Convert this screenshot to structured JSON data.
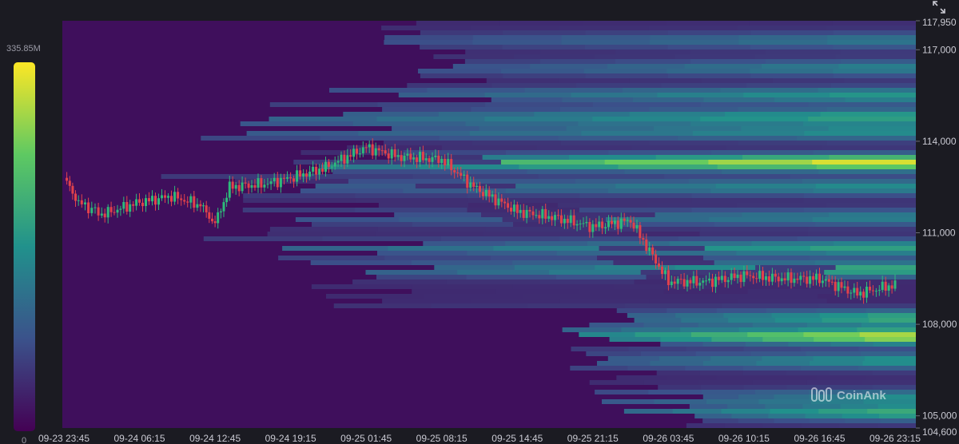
{
  "chart_data": {
    "type": "heatmap",
    "title": "",
    "xlabel": "",
    "ylabel": "",
    "x_ticks": [
      "09-23 23:45",
      "09-24 06:15",
      "09-24 12:45",
      "09-24 19:15",
      "09-25 01:45",
      "09-25 08:15",
      "09-25 14:45",
      "09-25 21:15",
      "09-26 03:45",
      "09-26 10:15",
      "09-26 16:45",
      "09-26 23:15"
    ],
    "y_ticks": [
      117950,
      117000,
      114000,
      111000,
      108000,
      105000,
      104600
    ],
    "y_tick_labels": [
      "117,950",
      "117,000",
      "114,000",
      "111,000",
      "108,000",
      "105,000",
      "104,600"
    ],
    "ylim": [
      104600,
      117950
    ],
    "color_scale": {
      "min_label": "0",
      "max_label": "335.85M",
      "min": 0,
      "max": 335.85,
      "unit": "M",
      "colormap": "viridis"
    },
    "price_candles_approx": [
      {
        "time": "09-23 23:45",
        "price": 112800
      },
      {
        "time": "09-24 01:00",
        "price": 112000
      },
      {
        "time": "09-24 03:00",
        "price": 111600
      },
      {
        "time": "09-24 06:15",
        "price": 112000
      },
      {
        "time": "09-24 09:00",
        "price": 112200
      },
      {
        "time": "09-24 11:30",
        "price": 111900
      },
      {
        "time": "09-24 12:45",
        "price": 111300
      },
      {
        "time": "09-24 14:00",
        "price": 112500
      },
      {
        "time": "09-24 17:00",
        "price": 112600
      },
      {
        "time": "09-24 19:15",
        "price": 112800
      },
      {
        "time": "09-24 22:00",
        "price": 113100
      },
      {
        "time": "09-25 01:45",
        "price": 113800
      },
      {
        "time": "09-25 04:30",
        "price": 113500
      },
      {
        "time": "09-25 08:15",
        "price": 113400
      },
      {
        "time": "09-25 11:00",
        "price": 112500
      },
      {
        "time": "09-25 14:45",
        "price": 111700
      },
      {
        "time": "09-25 18:00",
        "price": 111500
      },
      {
        "time": "09-25 21:15",
        "price": 111200
      },
      {
        "time": "09-26 00:30",
        "price": 111400
      },
      {
        "time": "09-26 03:45",
        "price": 109400
      },
      {
        "time": "09-26 07:00",
        "price": 109400
      },
      {
        "time": "09-26 10:15",
        "price": 109600
      },
      {
        "time": "09-26 13:30",
        "price": 109500
      },
      {
        "time": "09-26 16:45",
        "price": 109500
      },
      {
        "time": "09-26 20:00",
        "price": 109000
      },
      {
        "time": "09-26 23:15",
        "price": 109300
      }
    ],
    "liquidity_bands_approx": [
      {
        "price": 117300,
        "intensity": 0.3
      },
      {
        "price": 116400,
        "intensity": 0.35
      },
      {
        "price": 115500,
        "intensity": 0.45
      },
      {
        "price": 114800,
        "intensity": 0.5
      },
      {
        "price": 114300,
        "intensity": 0.4
      },
      {
        "price": 113300,
        "intensity": 0.95
      },
      {
        "price": 112500,
        "intensity": 0.4
      },
      {
        "price": 111500,
        "intensity": 0.35
      },
      {
        "price": 110500,
        "intensity": 0.5
      },
      {
        "price": 109800,
        "intensity": 0.55
      },
      {
        "price": 108200,
        "intensity": 0.55
      },
      {
        "price": 107600,
        "intensity": 0.9
      },
      {
        "price": 106800,
        "intensity": 0.45
      },
      {
        "price": 105600,
        "intensity": 0.4
      },
      {
        "price": 105100,
        "intensity": 0.55
      }
    ]
  },
  "watermark": {
    "text": "CoinAnk",
    "icon": "coinank-logo-icon"
  },
  "toolbar": {
    "expand_icon": "expand-icon"
  }
}
